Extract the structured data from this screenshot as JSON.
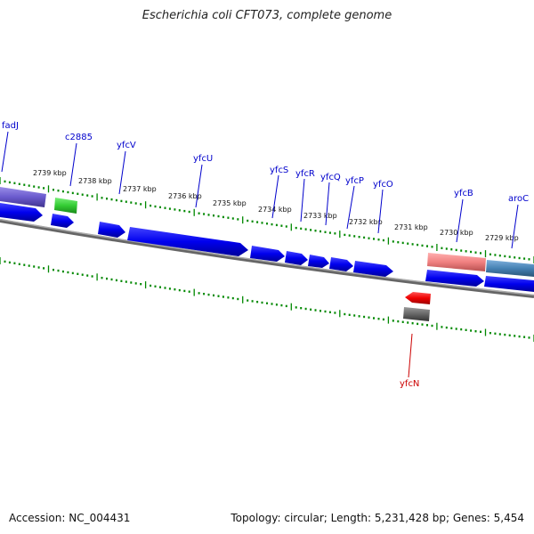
{
  "header": {
    "title": "Escherichia coli CFT073, complete genome"
  },
  "footer": {
    "accession": "Accession: NC_004431",
    "stats": "Topology: circular; Length: 5,231,428 bp; Genes: 5,454"
  },
  "scale": {
    "unit": "kbp",
    "labels": [
      "2739 kbp",
      "2738 kbp",
      "2737 kbp",
      "2736 kbp",
      "2735 kbp",
      "2734 kbp",
      "2733 kbp",
      "2732 kbp",
      "2731 kbp",
      "2730 kbp",
      "2729 kbp"
    ]
  },
  "genes": [
    {
      "name": "fadJ",
      "color": "#0000cc"
    },
    {
      "name": "c2885",
      "color": "#0000cc"
    },
    {
      "name": "yfcV",
      "color": "#0000cc"
    },
    {
      "name": "yfcU",
      "color": "#0000cc"
    },
    {
      "name": "yfcS",
      "color": "#0000cc"
    },
    {
      "name": "yfcR",
      "color": "#0000cc"
    },
    {
      "name": "yfcQ",
      "color": "#0000cc"
    },
    {
      "name": "yfcP",
      "color": "#0000cc"
    },
    {
      "name": "yfcO",
      "color": "#0000cc"
    },
    {
      "name": "yfcB",
      "color": "#0000cc"
    },
    {
      "name": "aroC",
      "color": "#0000cc"
    },
    {
      "name": "yfcN",
      "color": "#cc0000"
    }
  ],
  "colors": {
    "forward_cds": "#0000ee",
    "reverse_cds": "#dd0000",
    "backbone": "#808080",
    "ticks": "#008800",
    "feature_purple": "#6a5acd",
    "feature_green": "#33cc33",
    "feature_pink": "#f08080",
    "feature_steelblue": "#4682b4",
    "feature_grey": "#666666"
  }
}
